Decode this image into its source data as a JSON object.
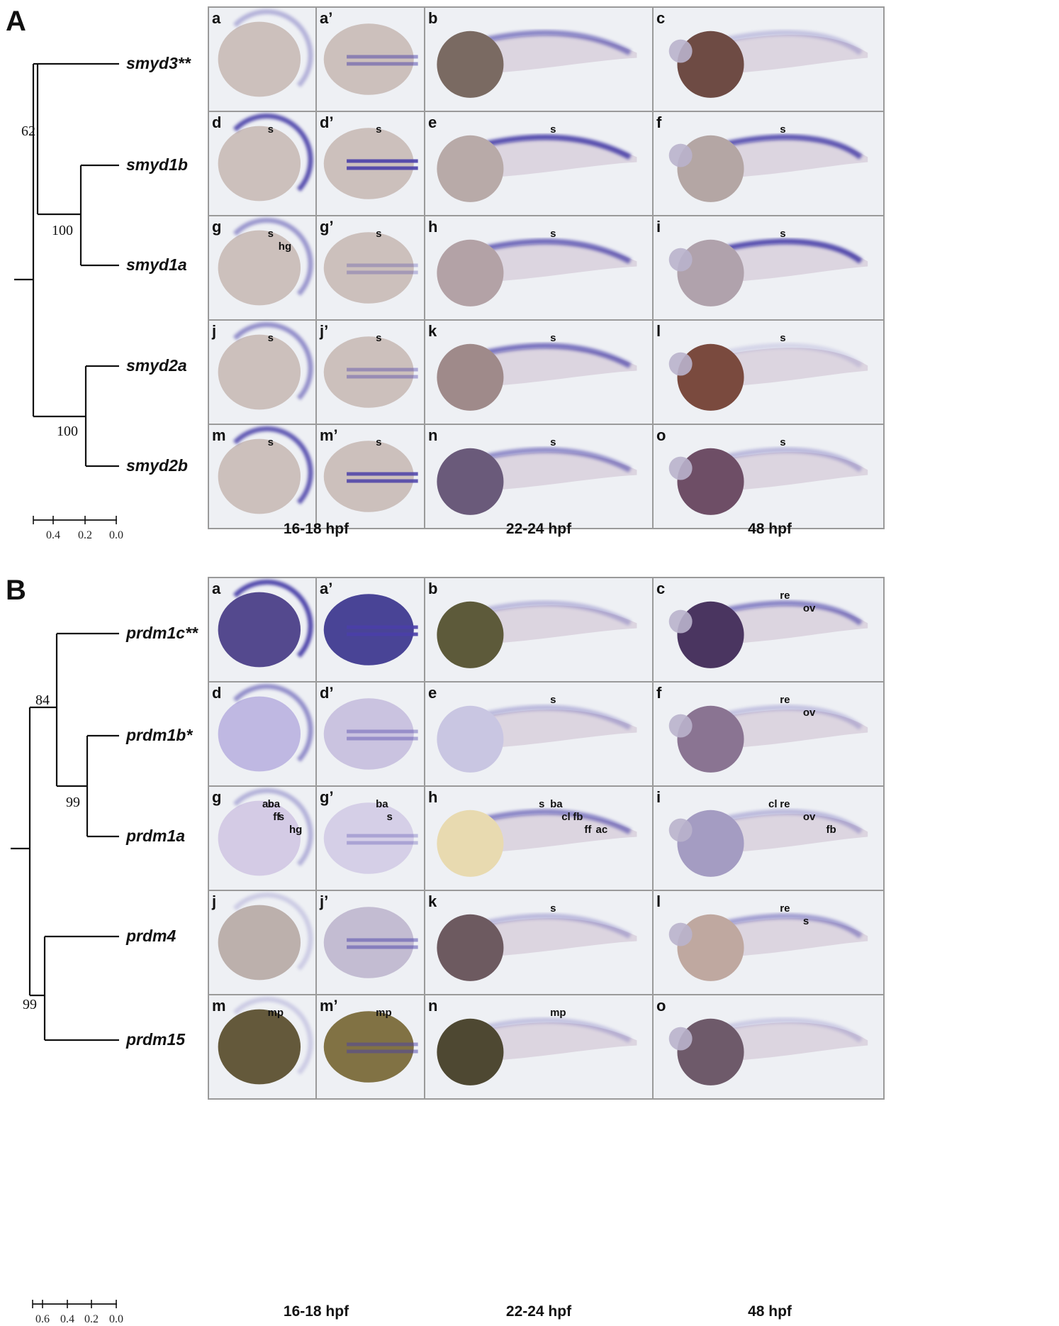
{
  "figure": {
    "panels": [
      {
        "letter": "A",
        "tree": {
          "taxa": [
            "smyd3**",
            "smyd1b",
            "smyd1a",
            "smyd2a",
            "smyd2b"
          ],
          "bootstrap": [
            "62",
            "100",
            "100"
          ],
          "scale_ticks": [
            "0.4",
            "0.2",
            "0.0"
          ]
        },
        "rows": [
          [
            {
              "label": "a",
              "marks": []
            },
            {
              "label": "a’",
              "marks": []
            },
            {
              "label": "b",
              "marks": []
            },
            {
              "label": "c",
              "marks": []
            }
          ],
          [
            {
              "label": "d",
              "marks": [
                "s"
              ]
            },
            {
              "label": "d’",
              "marks": [
                "s"
              ]
            },
            {
              "label": "e",
              "marks": [
                "s"
              ]
            },
            {
              "label": "f",
              "marks": [
                "s"
              ]
            }
          ],
          [
            {
              "label": "g",
              "marks": [
                "s",
                "hg"
              ]
            },
            {
              "label": "g’",
              "marks": [
                "s"
              ]
            },
            {
              "label": "h",
              "marks": [
                "s"
              ]
            },
            {
              "label": "i",
              "marks": [
                "s"
              ]
            }
          ],
          [
            {
              "label": "j",
              "marks": [
                "s"
              ]
            },
            {
              "label": "j’",
              "marks": [
                "s"
              ]
            },
            {
              "label": "k",
              "marks": [
                "s"
              ]
            },
            {
              "label": "l",
              "marks": [
                "s"
              ]
            }
          ],
          [
            {
              "label": "m",
              "marks": [
                "s"
              ]
            },
            {
              "label": "m’",
              "marks": [
                "s"
              ]
            },
            {
              "label": "n",
              "marks": [
                "s"
              ]
            },
            {
              "label": "o",
              "marks": [
                "s"
              ]
            }
          ]
        ],
        "stages": [
          "16-18 hpf",
          "22-24 hpf",
          "48 hpf"
        ]
      },
      {
        "letter": "B",
        "tree": {
          "taxa": [
            "prdm1c**",
            "prdm1b*",
            "prdm1a",
            "prdm4",
            "prdm15"
          ],
          "bootstrap": [
            "84",
            "99",
            "99"
          ],
          "scale_ticks": [
            "0.6",
            "0.4",
            "0.2",
            "0.0"
          ]
        },
        "rows": [
          [
            {
              "label": "a",
              "marks": []
            },
            {
              "label": "a’",
              "marks": []
            },
            {
              "label": "b",
              "marks": []
            },
            {
              "label": "c",
              "marks": [
                "re",
                "ov"
              ]
            }
          ],
          [
            {
              "label": "d",
              "marks": []
            },
            {
              "label": "d’",
              "marks": []
            },
            {
              "label": "e",
              "marks": [
                "s"
              ]
            },
            {
              "label": "f",
              "marks": [
                "re",
                "ov"
              ]
            }
          ],
          [
            {
              "label": "g",
              "marks": [
                "ba",
                "s",
                "hg",
                "ac",
                "ff"
              ]
            },
            {
              "label": "g’",
              "marks": [
                "ba",
                "s"
              ]
            },
            {
              "label": "h",
              "marks": [
                "ba",
                "fb",
                "ac",
                "s",
                "cl",
                "ff"
              ]
            },
            {
              "label": "i",
              "marks": [
                "re",
                "ov",
                "fb",
                "cl"
              ]
            }
          ],
          [
            {
              "label": "j",
              "marks": []
            },
            {
              "label": "j’",
              "marks": []
            },
            {
              "label": "k",
              "marks": [
                "s"
              ]
            },
            {
              "label": "l",
              "marks": [
                "re",
                "s"
              ]
            }
          ],
          [
            {
              "label": "m",
              "marks": [
                "mp"
              ]
            },
            {
              "label": "m’",
              "marks": [
                "mp"
              ]
            },
            {
              "label": "n",
              "marks": [
                "mp"
              ]
            },
            {
              "label": "o",
              "marks": []
            }
          ]
        ],
        "stages": [
          "16-18 hpf",
          "22-24 hpf",
          "48 hpf"
        ]
      }
    ],
    "colors": {
      "stain": "#4a3fa8",
      "embryo": "#c9bdb8",
      "yolk_brown": "#8a6a5e",
      "yolk_olive": "#6b6236",
      "yolk_light": "#e8dab0",
      "background": "#eef0f4",
      "grid": "#9a9a9a"
    }
  }
}
